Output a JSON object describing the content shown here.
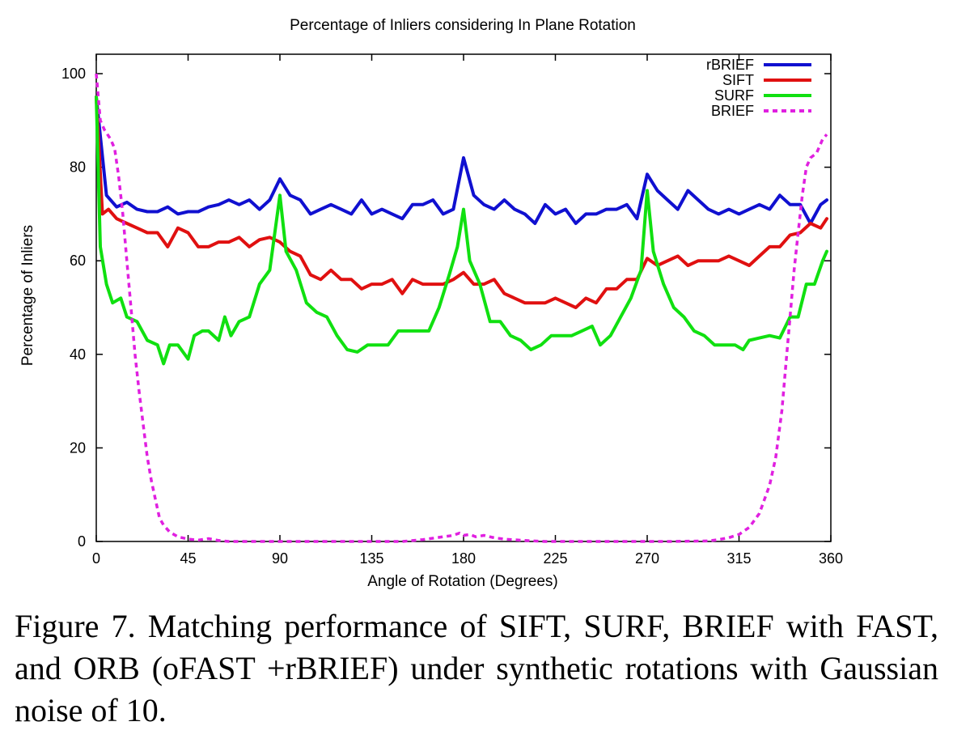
{
  "chart_data": {
    "type": "line",
    "title": "Percentage of Inliers considering In Plane Rotation",
    "xlabel": "Angle of Rotation (Degrees)",
    "ylabel": "Percentage of Inliers",
    "xlim": [
      0,
      360
    ],
    "ylim": [
      0,
      100
    ],
    "xticks": [
      0,
      45,
      90,
      135,
      180,
      225,
      270,
      315,
      360
    ],
    "yticks": [
      0,
      20,
      40,
      60,
      80,
      100
    ],
    "legend_position": "top-right",
    "grid": false,
    "series": [
      {
        "name": "rBRIEF",
        "color": "#1010d0",
        "dash": false,
        "points": [
          [
            0,
            95
          ],
          [
            5,
            74
          ],
          [
            10,
            71.5
          ],
          [
            15,
            72.5
          ],
          [
            20,
            71
          ],
          [
            25,
            70.5
          ],
          [
            30,
            70.5
          ],
          [
            35,
            71.5
          ],
          [
            40,
            70
          ],
          [
            45,
            70.5
          ],
          [
            50,
            70.5
          ],
          [
            55,
            71.5
          ],
          [
            60,
            72
          ],
          [
            65,
            73
          ],
          [
            70,
            72
          ],
          [
            75,
            73
          ],
          [
            80,
            71
          ],
          [
            85,
            73
          ],
          [
            90,
            77.5
          ],
          [
            95,
            74
          ],
          [
            100,
            73
          ],
          [
            105,
            70
          ],
          [
            110,
            71
          ],
          [
            115,
            72
          ],
          [
            120,
            71
          ],
          [
            125,
            70
          ],
          [
            130,
            73
          ],
          [
            135,
            70
          ],
          [
            140,
            71
          ],
          [
            145,
            70
          ],
          [
            150,
            69
          ],
          [
            155,
            72
          ],
          [
            160,
            72
          ],
          [
            165,
            73
          ],
          [
            170,
            70
          ],
          [
            175,
            71
          ],
          [
            180,
            82
          ],
          [
            185,
            74
          ],
          [
            190,
            72
          ],
          [
            195,
            71
          ],
          [
            200,
            73
          ],
          [
            205,
            71
          ],
          [
            210,
            70
          ],
          [
            215,
            68
          ],
          [
            220,
            72
          ],
          [
            225,
            70
          ],
          [
            230,
            71
          ],
          [
            235,
            68
          ],
          [
            240,
            70
          ],
          [
            245,
            70
          ],
          [
            250,
            71
          ],
          [
            255,
            71
          ],
          [
            260,
            72
          ],
          [
            265,
            69
          ],
          [
            270,
            78.5
          ],
          [
            275,
            75
          ],
          [
            280,
            73
          ],
          [
            285,
            71
          ],
          [
            290,
            75
          ],
          [
            295,
            73
          ],
          [
            300,
            71
          ],
          [
            305,
            70
          ],
          [
            310,
            71
          ],
          [
            315,
            70
          ],
          [
            320,
            71
          ],
          [
            325,
            72
          ],
          [
            330,
            71
          ],
          [
            335,
            74
          ],
          [
            340,
            72
          ],
          [
            345,
            72
          ],
          [
            350,
            68
          ],
          [
            355,
            72
          ],
          [
            358,
            73
          ]
        ]
      },
      {
        "name": "SIFT",
        "color": "#e01010",
        "dash": false,
        "points": [
          [
            0,
            95
          ],
          [
            3,
            70
          ],
          [
            6,
            71
          ],
          [
            10,
            69
          ],
          [
            15,
            68
          ],
          [
            20,
            67
          ],
          [
            25,
            66
          ],
          [
            30,
            66
          ],
          [
            35,
            63
          ],
          [
            40,
            67
          ],
          [
            45,
            66
          ],
          [
            50,
            63
          ],
          [
            55,
            63
          ],
          [
            60,
            64
          ],
          [
            65,
            64
          ],
          [
            70,
            65
          ],
          [
            75,
            63
          ],
          [
            80,
            64.5
          ],
          [
            85,
            65
          ],
          [
            90,
            64
          ],
          [
            95,
            62
          ],
          [
            100,
            61
          ],
          [
            105,
            57
          ],
          [
            110,
            56
          ],
          [
            115,
            58
          ],
          [
            120,
            56
          ],
          [
            125,
            56
          ],
          [
            130,
            54
          ],
          [
            135,
            55
          ],
          [
            140,
            55
          ],
          [
            145,
            56
          ],
          [
            150,
            53
          ],
          [
            155,
            56
          ],
          [
            160,
            55
          ],
          [
            165,
            55
          ],
          [
            170,
            55
          ],
          [
            175,
            56
          ],
          [
            180,
            57.5
          ],
          [
            185,
            55
          ],
          [
            190,
            55
          ],
          [
            195,
            56
          ],
          [
            200,
            53
          ],
          [
            205,
            52
          ],
          [
            210,
            51
          ],
          [
            215,
            51
          ],
          [
            220,
            51
          ],
          [
            225,
            52
          ],
          [
            230,
            51
          ],
          [
            235,
            50
          ],
          [
            240,
            52
          ],
          [
            245,
            51
          ],
          [
            250,
            54
          ],
          [
            255,
            54
          ],
          [
            260,
            56
          ],
          [
            265,
            56
          ],
          [
            270,
            60.5
          ],
          [
            275,
            59
          ],
          [
            280,
            60
          ],
          [
            285,
            61
          ],
          [
            290,
            59
          ],
          [
            295,
            60
          ],
          [
            300,
            60
          ],
          [
            305,
            60
          ],
          [
            310,
            61
          ],
          [
            315,
            60
          ],
          [
            320,
            59
          ],
          [
            325,
            61
          ],
          [
            330,
            63
          ],
          [
            335,
            63
          ],
          [
            340,
            65.5
          ],
          [
            345,
            66
          ],
          [
            350,
            68
          ],
          [
            355,
            67
          ],
          [
            358,
            69
          ]
        ]
      },
      {
        "name": "SURF",
        "color": "#10e010",
        "dash": false,
        "points": [
          [
            0,
            95
          ],
          [
            2,
            63
          ],
          [
            5,
            55
          ],
          [
            8,
            51
          ],
          [
            12,
            52
          ],
          [
            15,
            48
          ],
          [
            20,
            47
          ],
          [
            25,
            43
          ],
          [
            30,
            42
          ],
          [
            33,
            38
          ],
          [
            36,
            42
          ],
          [
            40,
            42
          ],
          [
            45,
            39
          ],
          [
            48,
            44
          ],
          [
            52,
            45
          ],
          [
            55,
            45
          ],
          [
            60,
            43
          ],
          [
            63,
            48
          ],
          [
            66,
            44
          ],
          [
            70,
            47
          ],
          [
            75,
            48
          ],
          [
            80,
            55
          ],
          [
            85,
            58
          ],
          [
            90,
            74
          ],
          [
            93,
            62
          ],
          [
            98,
            58
          ],
          [
            103,
            51
          ],
          [
            108,
            49
          ],
          [
            113,
            48
          ],
          [
            118,
            44
          ],
          [
            123,
            41
          ],
          [
            128,
            40.5
          ],
          [
            133,
            42
          ],
          [
            138,
            42
          ],
          [
            143,
            42
          ],
          [
            148,
            45
          ],
          [
            153,
            45
          ],
          [
            158,
            45
          ],
          [
            163,
            45
          ],
          [
            168,
            50
          ],
          [
            173,
            57
          ],
          [
            177,
            63
          ],
          [
            180,
            71
          ],
          [
            183,
            60
          ],
          [
            188,
            55
          ],
          [
            193,
            47
          ],
          [
            198,
            47
          ],
          [
            203,
            44
          ],
          [
            208,
            43
          ],
          [
            213,
            41
          ],
          [
            218,
            42
          ],
          [
            223,
            44
          ],
          [
            228,
            44
          ],
          [
            233,
            44
          ],
          [
            238,
            45
          ],
          [
            243,
            46
          ],
          [
            247,
            42
          ],
          [
            252,
            44
          ],
          [
            257,
            48
          ],
          [
            262,
            52
          ],
          [
            267,
            58
          ],
          [
            270,
            75
          ],
          [
            273,
            62
          ],
          [
            278,
            55
          ],
          [
            283,
            50
          ],
          [
            288,
            48
          ],
          [
            293,
            45
          ],
          [
            298,
            44
          ],
          [
            303,
            42
          ],
          [
            308,
            42
          ],
          [
            313,
            42
          ],
          [
            317,
            41
          ],
          [
            320,
            43
          ],
          [
            325,
            43.5
          ],
          [
            330,
            44
          ],
          [
            335,
            43.5
          ],
          [
            340,
            48
          ],
          [
            344,
            48
          ],
          [
            348,
            55
          ],
          [
            352,
            55
          ],
          [
            356,
            60
          ],
          [
            358,
            62
          ]
        ]
      },
      {
        "name": "BRIEF",
        "color": "#e020e0",
        "dash": true,
        "points": [
          [
            0,
            100
          ],
          [
            2,
            90
          ],
          [
            4,
            88
          ],
          [
            7,
            86
          ],
          [
            9,
            84
          ],
          [
            11,
            78
          ],
          [
            13,
            70
          ],
          [
            15,
            60
          ],
          [
            17,
            50
          ],
          [
            19,
            40
          ],
          [
            21,
            32
          ],
          [
            23,
            25
          ],
          [
            25,
            18
          ],
          [
            27,
            13
          ],
          [
            29,
            9
          ],
          [
            31,
            5
          ],
          [
            33,
            3.5
          ],
          [
            36,
            2
          ],
          [
            40,
            1
          ],
          [
            45,
            0.5
          ],
          [
            50,
            0.3
          ],
          [
            55,
            0.6
          ],
          [
            60,
            0.2
          ],
          [
            65,
            0
          ],
          [
            90,
            0
          ],
          [
            150,
            0
          ],
          [
            160,
            0.4
          ],
          [
            165,
            0.7
          ],
          [
            170,
            1
          ],
          [
            175,
            1.3
          ],
          [
            178,
            1.8
          ],
          [
            180,
            1.3
          ],
          [
            183,
            1.5
          ],
          [
            186,
            1
          ],
          [
            190,
            1.3
          ],
          [
            195,
            0.8
          ],
          [
            200,
            0.5
          ],
          [
            210,
            0.2
          ],
          [
            220,
            0
          ],
          [
            280,
            0
          ],
          [
            300,
            0.1
          ],
          [
            305,
            0.4
          ],
          [
            310,
            0.8
          ],
          [
            315,
            1.5
          ],
          [
            320,
            3
          ],
          [
            325,
            6
          ],
          [
            330,
            12
          ],
          [
            333,
            18
          ],
          [
            336,
            28
          ],
          [
            338,
            38
          ],
          [
            340,
            48
          ],
          [
            342,
            58
          ],
          [
            344,
            66
          ],
          [
            346,
            74
          ],
          [
            348,
            80
          ],
          [
            350,
            82
          ],
          [
            353,
            83
          ],
          [
            356,
            86
          ],
          [
            358,
            87
          ]
        ]
      }
    ]
  },
  "caption": "Figure 7. Matching performance of SIFT, SURF, BRIEF with FAST, and ORB (oFAST +rBRIEF) under synthetic rotations with Gaussian noise of 10."
}
